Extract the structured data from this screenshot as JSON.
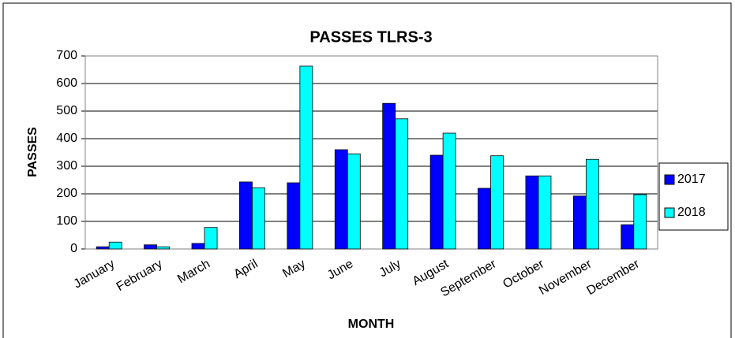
{
  "chart_data": {
    "type": "bar",
    "title": "PASSES TLRS-3",
    "x_label": "MONTH",
    "y_label": "PASSES",
    "categories": [
      "January",
      "February",
      "March",
      "April",
      "May",
      "June",
      "July",
      "August",
      "September",
      "October",
      "November",
      "December"
    ],
    "series": [
      {
        "name": "2017",
        "color": "#0000ff",
        "values": [
          8,
          15,
          20,
          243,
          240,
          360,
          528,
          340,
          220,
          265,
          192,
          88
        ]
      },
      {
        "name": "2018",
        "color": "#00ffff",
        "values": [
          25,
          8,
          78,
          222,
          663,
          345,
          472,
          420,
          338,
          265,
          325,
          197
        ]
      }
    ],
    "ylim": [
      0,
      700
    ],
    "yticks": [
      0,
      100,
      200,
      300,
      400,
      500,
      600,
      700
    ],
    "grid": true,
    "legend": "right"
  }
}
